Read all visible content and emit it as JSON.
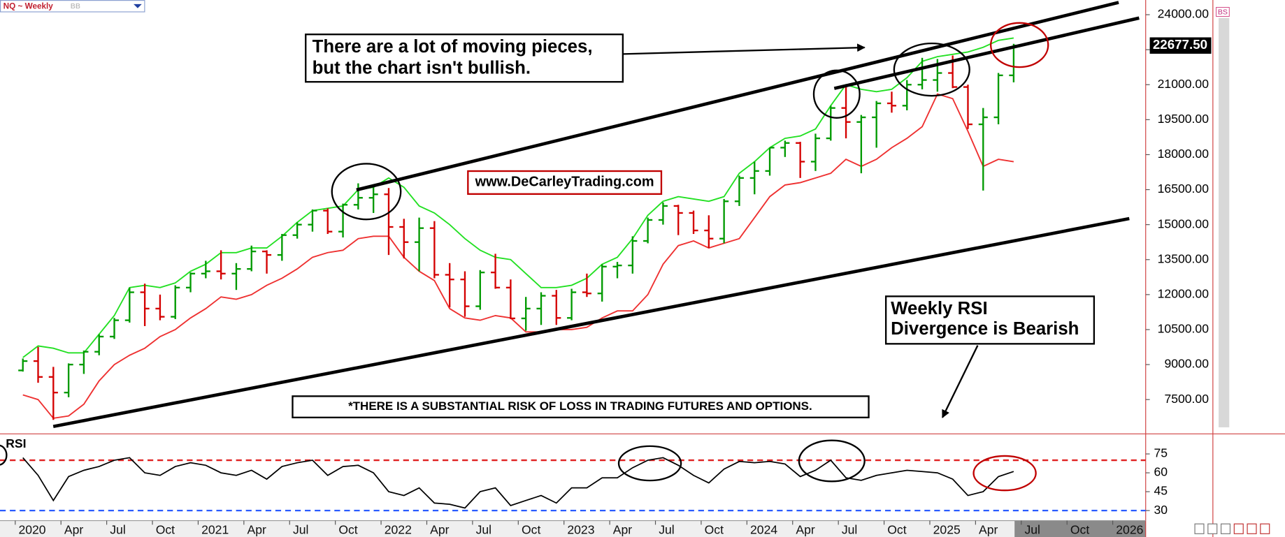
{
  "chart_data": {
    "type": "ohlc",
    "header_title": "NQ ~ Weekly",
    "header_study": "BB",
    "side_label": "BS",
    "up_color": "#009a00",
    "down_color": "#d40000",
    "x": [
      "2020-01",
      "2020-02",
      "2020-03",
      "2020-04",
      "2020-05",
      "2020-06",
      "2020-07",
      "2020-08",
      "2020-09",
      "2020-10",
      "2020-11",
      "2020-12",
      "2021-01",
      "2021-02",
      "2021-03",
      "2021-04",
      "2021-05",
      "2021-06",
      "2021-07",
      "2021-08",
      "2021-09",
      "2021-10",
      "2021-11",
      "2021-12",
      "2022-01",
      "2022-02",
      "2022-03",
      "2022-04",
      "2022-05",
      "2022-06",
      "2022-07",
      "2022-08",
      "2022-09",
      "2022-10",
      "2022-11",
      "2022-12",
      "2023-01",
      "2023-02",
      "2023-03",
      "2023-04",
      "2023-05",
      "2023-06",
      "2023-07",
      "2023-08",
      "2023-09",
      "2023-10",
      "2023-11",
      "2023-12",
      "2024-01",
      "2024-02",
      "2024-03",
      "2024-04",
      "2024-05",
      "2024-06",
      "2024-07",
      "2024-08",
      "2024-09",
      "2024-10",
      "2024-11",
      "2024-12",
      "2025-01",
      "2025-02",
      "2025-03",
      "2025-04",
      "2025-05",
      "2025-06"
    ],
    "open": [
      8750,
      9150,
      8470,
      7800,
      9000,
      9550,
      10200,
      10900,
      12100,
      11400,
      11050,
      12300,
      12900,
      13000,
      12900,
      13100,
      13850,
      13700,
      14550,
      15000,
      15600,
      14700,
      15850,
      16150,
      16300,
      14900,
      14250,
      14850,
      12850,
      12650,
      11500,
      12950,
      12300,
      10980,
      11400,
      11950,
      11000,
      12100,
      12050,
      13200,
      13250,
      14300,
      15200,
      15800,
      15500,
      14750,
      14400,
      16000,
      17000,
      17300,
      18300,
      18500,
      17700,
      18700,
      20000,
      19400,
      19600,
      20200,
      20100,
      21000,
      21200,
      21500,
      20900,
      19300,
      19600,
      21400
    ],
    "high": [
      9260,
      9760,
      8900,
      9050,
      9600,
      10300,
      11000,
      12300,
      12470,
      12000,
      12400,
      12950,
      13450,
      13900,
      13350,
      14100,
      13900,
      14600,
      15100,
      15650,
      15700,
      15900,
      16770,
      16660,
      16570,
      15250,
      15300,
      15150,
      13350,
      13000,
      13050,
      13750,
      12650,
      11900,
      12100,
      12200,
      12250,
      12900,
      13300,
      13400,
      14500,
      15300,
      15950,
      15850,
      15600,
      15400,
      16100,
      17100,
      17700,
      18300,
      18600,
      18550,
      18900,
      20100,
      21000,
      19700,
      20300,
      20700,
      21200,
      22150,
      22100,
      22250,
      21000,
      20000,
      21500,
      22750
    ],
    "low": [
      8700,
      8220,
      6630,
      7600,
      8600,
      9400,
      10100,
      10800,
      10650,
      10900,
      10950,
      12100,
      12700,
      12650,
      12200,
      13000,
      12900,
      13450,
      14400,
      14700,
      14600,
      14450,
      15650,
      15500,
      13700,
      13550,
      13000,
      12700,
      11450,
      11050,
      11350,
      12250,
      10950,
      10450,
      10700,
      10700,
      10900,
      11900,
      11700,
      12700,
      12900,
      14200,
      15000,
      14550,
      14600,
      14000,
      14200,
      15800,
      16300,
      17100,
      17900,
      17000,
      17300,
      18600,
      18700,
      17200,
      18300,
      19800,
      19900,
      20800,
      20700,
      20850,
      19100,
      16460,
      19300,
      21100
    ],
    "close": [
      9150,
      8470,
      7800,
      9000,
      9550,
      10200,
      10900,
      12100,
      11400,
      11050,
      12300,
      12900,
      13000,
      12900,
      13100,
      13850,
      13700,
      14550,
      15000,
      15600,
      14700,
      15850,
      16150,
      16300,
      14900,
      14250,
      14850,
      12850,
      12650,
      11500,
      12950,
      12300,
      10980,
      11400,
      11950,
      11000,
      12100,
      12050,
      13200,
      13250,
      14300,
      15200,
      15800,
      15500,
      14750,
      14400,
      16000,
      17000,
      17300,
      18300,
      18500,
      17700,
      18700,
      20000,
      19400,
      19600,
      20200,
      20100,
      21000,
      21200,
      21500,
      20900,
      19300,
      19600,
      21400,
      22677.5
    ],
    "upper_band": {
      "color": "#22e022",
      "values": [
        9300,
        9800,
        9700,
        9500,
        9500,
        10300,
        11100,
        12300,
        12400,
        12300,
        12500,
        13000,
        13300,
        13800,
        13800,
        14000,
        14000,
        14500,
        15100,
        15600,
        15700,
        15800,
        16500,
        16600,
        17000,
        16600,
        15800,
        15500,
        15000,
        14400,
        13900,
        13600,
        13500,
        12900,
        12300,
        12300,
        12400,
        12700,
        13300,
        13600,
        14400,
        15400,
        16000,
        16200,
        16100,
        16000,
        16200,
        17200,
        17700,
        18300,
        18700,
        18800,
        19100,
        20100,
        21000,
        20800,
        20700,
        20800,
        21300,
        22000,
        22200,
        22300,
        22400,
        22600,
        22900,
        23000
      ]
    },
    "lower_band": {
      "color": "#ee3030",
      "values": [
        7700,
        7500,
        6700,
        6800,
        7300,
        8300,
        9000,
        9400,
        9700,
        10200,
        10500,
        11000,
        11400,
        11900,
        11800,
        12000,
        12400,
        12700,
        13100,
        13600,
        13800,
        13900,
        14400,
        14500,
        14500,
        13600,
        13000,
        12600,
        11400,
        11000,
        10900,
        11100,
        11000,
        10400,
        10400,
        10500,
        10500,
        10600,
        11000,
        11300,
        11300,
        12000,
        13300,
        14100,
        14300,
        14000,
        14200,
        14400,
        15300,
        16200,
        16700,
        16800,
        17000,
        17200,
        17800,
        17500,
        17800,
        18300,
        18700,
        19200,
        20600,
        20400,
        19000,
        17500,
        17800,
        17700
      ]
    },
    "xlim": [
      "2019-12",
      "2026-03"
    ],
    "xticks": [
      {
        "value": "2020-01",
        "label": "2020"
      },
      {
        "value": "2020-04",
        "label": "Apr"
      },
      {
        "value": "2020-07",
        "label": "Jul"
      },
      {
        "value": "2020-10",
        "label": "Oct"
      },
      {
        "value": "2021-01",
        "label": "2021"
      },
      {
        "value": "2021-04",
        "label": "Apr"
      },
      {
        "value": "2021-07",
        "label": "Jul"
      },
      {
        "value": "2021-10",
        "label": "Oct"
      },
      {
        "value": "2022-01",
        "label": "2022"
      },
      {
        "value": "2022-04",
        "label": "Apr"
      },
      {
        "value": "2022-07",
        "label": "Jul"
      },
      {
        "value": "2022-10",
        "label": "Oct"
      },
      {
        "value": "2023-01",
        "label": "2023"
      },
      {
        "value": "2023-04",
        "label": "Apr"
      },
      {
        "value": "2023-07",
        "label": "Jul"
      },
      {
        "value": "2023-10",
        "label": "Oct"
      },
      {
        "value": "2024-01",
        "label": "2024"
      },
      {
        "value": "2024-04",
        "label": "Apr"
      },
      {
        "value": "2024-07",
        "label": "Jul"
      },
      {
        "value": "2024-10",
        "label": "Oct"
      },
      {
        "value": "2025-01",
        "label": "2025"
      },
      {
        "value": "2025-04",
        "label": "Apr"
      },
      {
        "value": "2025-07",
        "label": "Jul"
      },
      {
        "value": "2025-10",
        "label": "Oct"
      },
      {
        "value": "2026-01",
        "label": "2026"
      }
    ],
    "ylim": [
      6100,
      24630
    ],
    "yticks": [
      {
        "value": 7500,
        "label": "7500.00"
      },
      {
        "value": 9000,
        "label": "9000.00"
      },
      {
        "value": 10500,
        "label": "10500.00"
      },
      {
        "value": 12000,
        "label": "12000.00"
      },
      {
        "value": 13500,
        "label": "13500.00"
      },
      {
        "value": 15000,
        "label": "15000.00"
      },
      {
        "value": 16500,
        "label": "16500.00"
      },
      {
        "value": 18000,
        "label": "18000.00"
      },
      {
        "value": 19500,
        "label": "19500.00"
      },
      {
        "value": 21000,
        "label": "21000.00"
      },
      {
        "value": 22500,
        "label": "22500.00"
      },
      {
        "value": 24000,
        "label": "24000.00"
      }
    ],
    "last_price": {
      "value": 22677.5,
      "label": "22677.50"
    },
    "rsi": {
      "label": "RSI",
      "color": "#000000",
      "values": [
        72,
        58,
        38,
        57,
        62,
        65,
        70,
        72,
        60,
        58,
        65,
        68,
        66,
        60,
        58,
        62,
        55,
        65,
        68,
        70,
        58,
        65,
        66,
        60,
        45,
        42,
        48,
        36,
        35,
        32,
        45,
        48,
        34,
        38,
        42,
        36,
        48,
        48,
        56,
        56,
        64,
        70,
        72,
        66,
        58,
        52,
        63,
        69,
        68,
        69,
        67,
        57,
        62,
        70,
        56,
        54,
        58,
        60,
        62,
        61,
        60,
        55,
        42,
        45,
        57,
        61
      ],
      "ylim": [
        22,
        89
      ],
      "yticks": [
        30,
        45,
        60,
        75
      ],
      "levels": [
        {
          "value": 70,
          "color": "#e02020"
        },
        {
          "value": 30,
          "color": "#2a5cff"
        }
      ]
    },
    "annotations": {
      "headline": [
        "There are a lot of moving pieces,",
        "but the chart isn't bullish."
      ],
      "website": "www.DeCarleyTrading.com",
      "rsi_note": [
        "Weekly RSI",
        "Divergence is Bearish"
      ],
      "disclaimer": "*THERE IS A SUBSTANTIAL RISK OF LOSS IN TRADING FUTURES AND OPTIONS."
    }
  }
}
